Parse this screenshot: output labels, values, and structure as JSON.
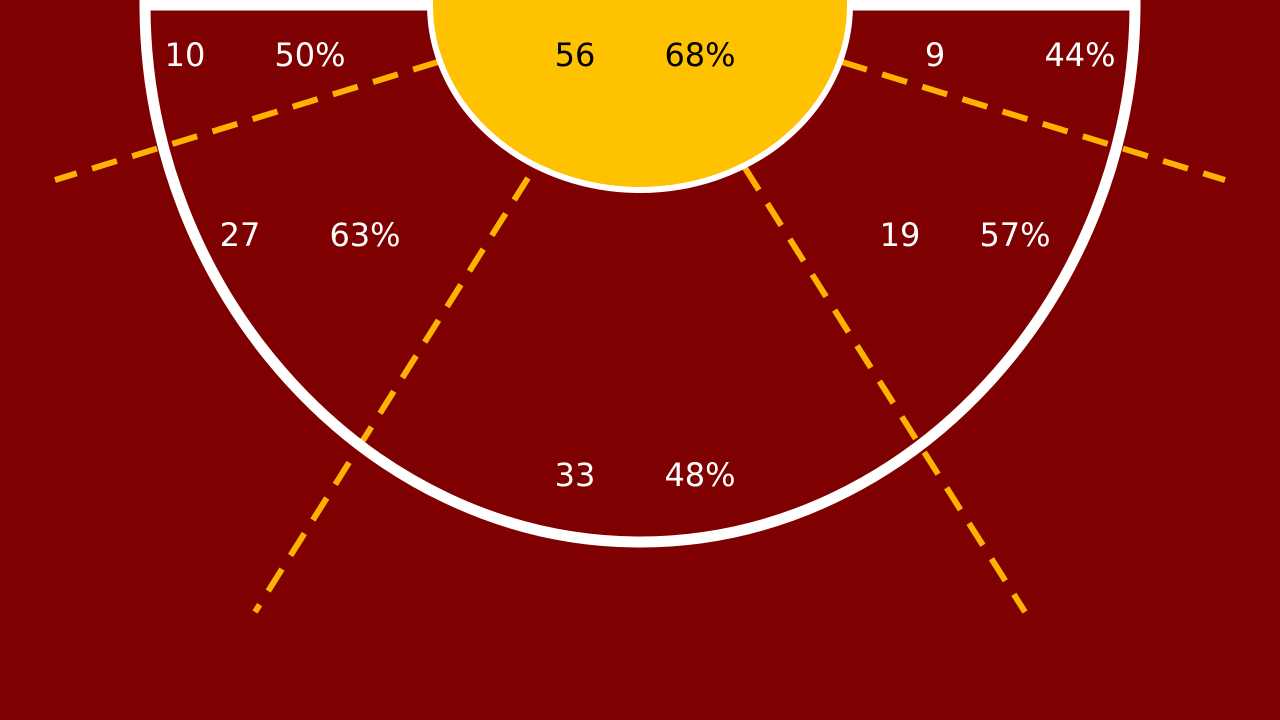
{
  "colors": {
    "background": "#7f0000",
    "paint": "#ffc200",
    "court_lines": "#ffffff",
    "zone_dividers": "#ffb300",
    "text_light": "#ffffff",
    "text_dark": "#000000"
  },
  "chart_data": {
    "type": "shot-zone-map",
    "title": "",
    "zones": [
      {
        "zone": "left-corner",
        "attempts": 10,
        "pct": "50%"
      },
      {
        "zone": "paint",
        "attempts": 56,
        "pct": "68%"
      },
      {
        "zone": "right-corner",
        "attempts": 9,
        "pct": "44%"
      },
      {
        "zone": "left-wing",
        "attempts": 27,
        "pct": "63%"
      },
      {
        "zone": "right-wing",
        "attempts": 19,
        "pct": "57%"
      },
      {
        "zone": "top-of-key",
        "attempts": 33,
        "pct": "48%"
      }
    ]
  }
}
